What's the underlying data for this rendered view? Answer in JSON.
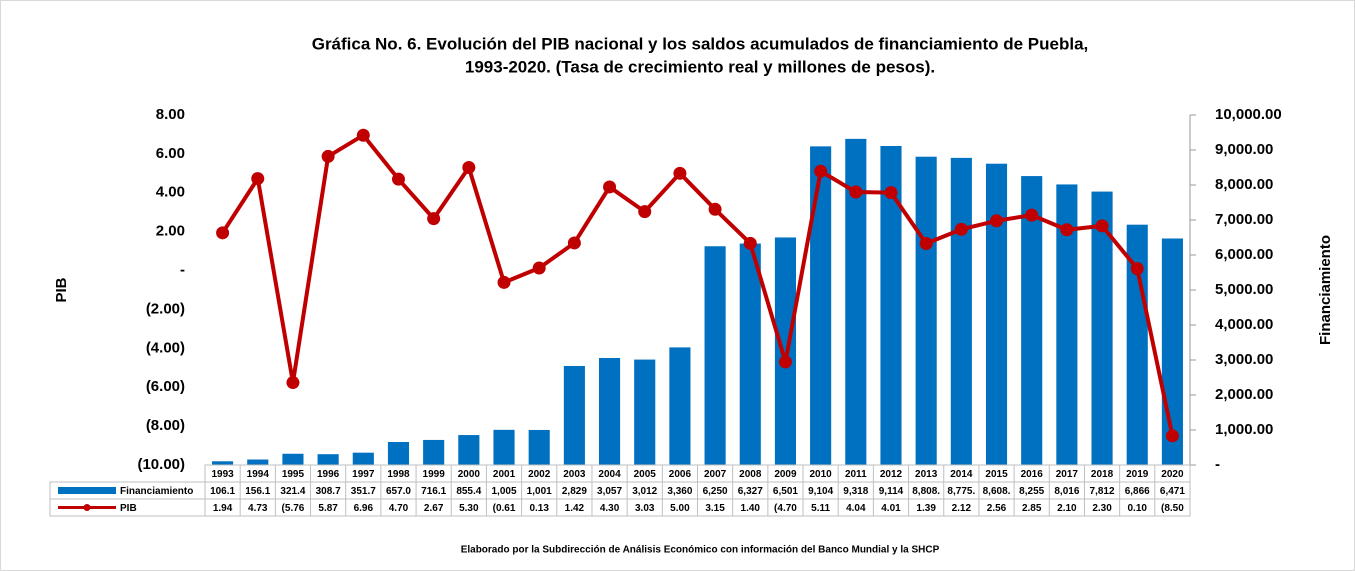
{
  "chart_data": {
    "type": "bar-line",
    "title": "Gráfica No. 6. Evolución del PIB nacional y los saldos acumulados de financiamiento de Puebla,",
    "subtitle": "1993-2020. (Tasa de crecimiento real y millones de pesos).",
    "y_label": "PIB",
    "y2_label": "Financiamiento",
    "footnote": "Elaborado por la Subdirección de Análisis Económico con información del Banco Mundial y la SHCP",
    "categories": [
      "1993",
      "1994",
      "1995",
      "1996",
      "1997",
      "1998",
      "1999",
      "2000",
      "2001",
      "2002",
      "2003",
      "2004",
      "2005",
      "2006",
      "2007",
      "2008",
      "2009",
      "2010",
      "2011",
      "2012",
      "2013",
      "2014",
      "2015",
      "2016",
      "2017",
      "2018",
      "2019",
      "2020"
    ],
    "series": [
      {
        "name": "Financiamiento",
        "type": "bar",
        "axis": "y2",
        "color": "#0070c0",
        "values": [
          106.1,
          156.1,
          321.4,
          308.7,
          351.7,
          657.0,
          716.1,
          855.4,
          1005,
          1001,
          2829,
          3057,
          3012,
          3360,
          6250,
          6327,
          6501,
          9104,
          9318,
          9114,
          8808,
          8775,
          8608,
          8255,
          8016,
          7812,
          6866,
          6471
        ],
        "value_labels": [
          "106.1",
          "156.1",
          "321.4",
          "308.7",
          "351.7",
          "657.0",
          "716.1",
          "855.4",
          "1,005",
          "1,001",
          "2,829",
          "3,057",
          "3,012",
          "3,360",
          "6,250",
          "6,327",
          "6,501",
          "9,104",
          "9,318",
          "9,114",
          "8,808.",
          "8,775.",
          "8,608.",
          "8,255",
          "8,016",
          "7,812",
          "6,866",
          "6,471"
        ]
      },
      {
        "name": "PIB",
        "type": "line",
        "axis": "y",
        "color": "#c00000",
        "values": [
          1.94,
          4.73,
          -5.76,
          5.87,
          6.96,
          4.7,
          2.67,
          5.3,
          -0.61,
          0.13,
          1.42,
          4.3,
          3.03,
          5.0,
          3.15,
          1.4,
          -4.7,
          5.11,
          4.04,
          4.01,
          1.39,
          2.12,
          2.56,
          2.85,
          2.1,
          2.3,
          0.1,
          -8.5
        ],
        "value_labels": [
          "1.94",
          "4.73",
          "(5.76",
          "5.87",
          "6.96",
          "4.70",
          "2.67",
          "5.30",
          "(0.61",
          "0.13",
          "1.42",
          "4.30",
          "3.03",
          "5.00",
          "3.15",
          "1.40",
          "(4.70",
          "5.11",
          "4.04",
          "4.01",
          "1.39",
          "2.12",
          "2.56",
          "2.85",
          "2.10",
          "2.30",
          "0.10",
          "(8.50"
        ]
      }
    ],
    "ylim": [
      -10,
      8
    ],
    "yticks": [
      {
        "value": 8,
        "label": "8.00"
      },
      {
        "value": 6,
        "label": "6.00"
      },
      {
        "value": 4,
        "label": "4.00"
      },
      {
        "value": 2,
        "label": "2.00"
      },
      {
        "value": 0,
        "label": "-"
      },
      {
        "value": -2,
        "label": "(2.00)"
      },
      {
        "value": -4,
        "label": "(4.00)"
      },
      {
        "value": -6,
        "label": "(6.00)"
      },
      {
        "value": -8,
        "label": "(8.00)"
      },
      {
        "value": -10,
        "label": "(10.00)"
      }
    ],
    "y2lim": [
      0,
      10000
    ],
    "y2ticks": [
      {
        "value": 10000,
        "label": "10,000.00"
      },
      {
        "value": 9000,
        "label": "9,000.00"
      },
      {
        "value": 8000,
        "label": "8,000.00"
      },
      {
        "value": 7000,
        "label": "7,000.00"
      },
      {
        "value": 6000,
        "label": "6,000.00"
      },
      {
        "value": 5000,
        "label": "5,000.00"
      },
      {
        "value": 4000,
        "label": "4,000.00"
      },
      {
        "value": 3000,
        "label": "3,000.00"
      },
      {
        "value": 2000,
        "label": "2,000.00"
      },
      {
        "value": 1000,
        "label": "1,000.00"
      },
      {
        "value": 0,
        "label": "-"
      }
    ],
    "grid": false
  }
}
